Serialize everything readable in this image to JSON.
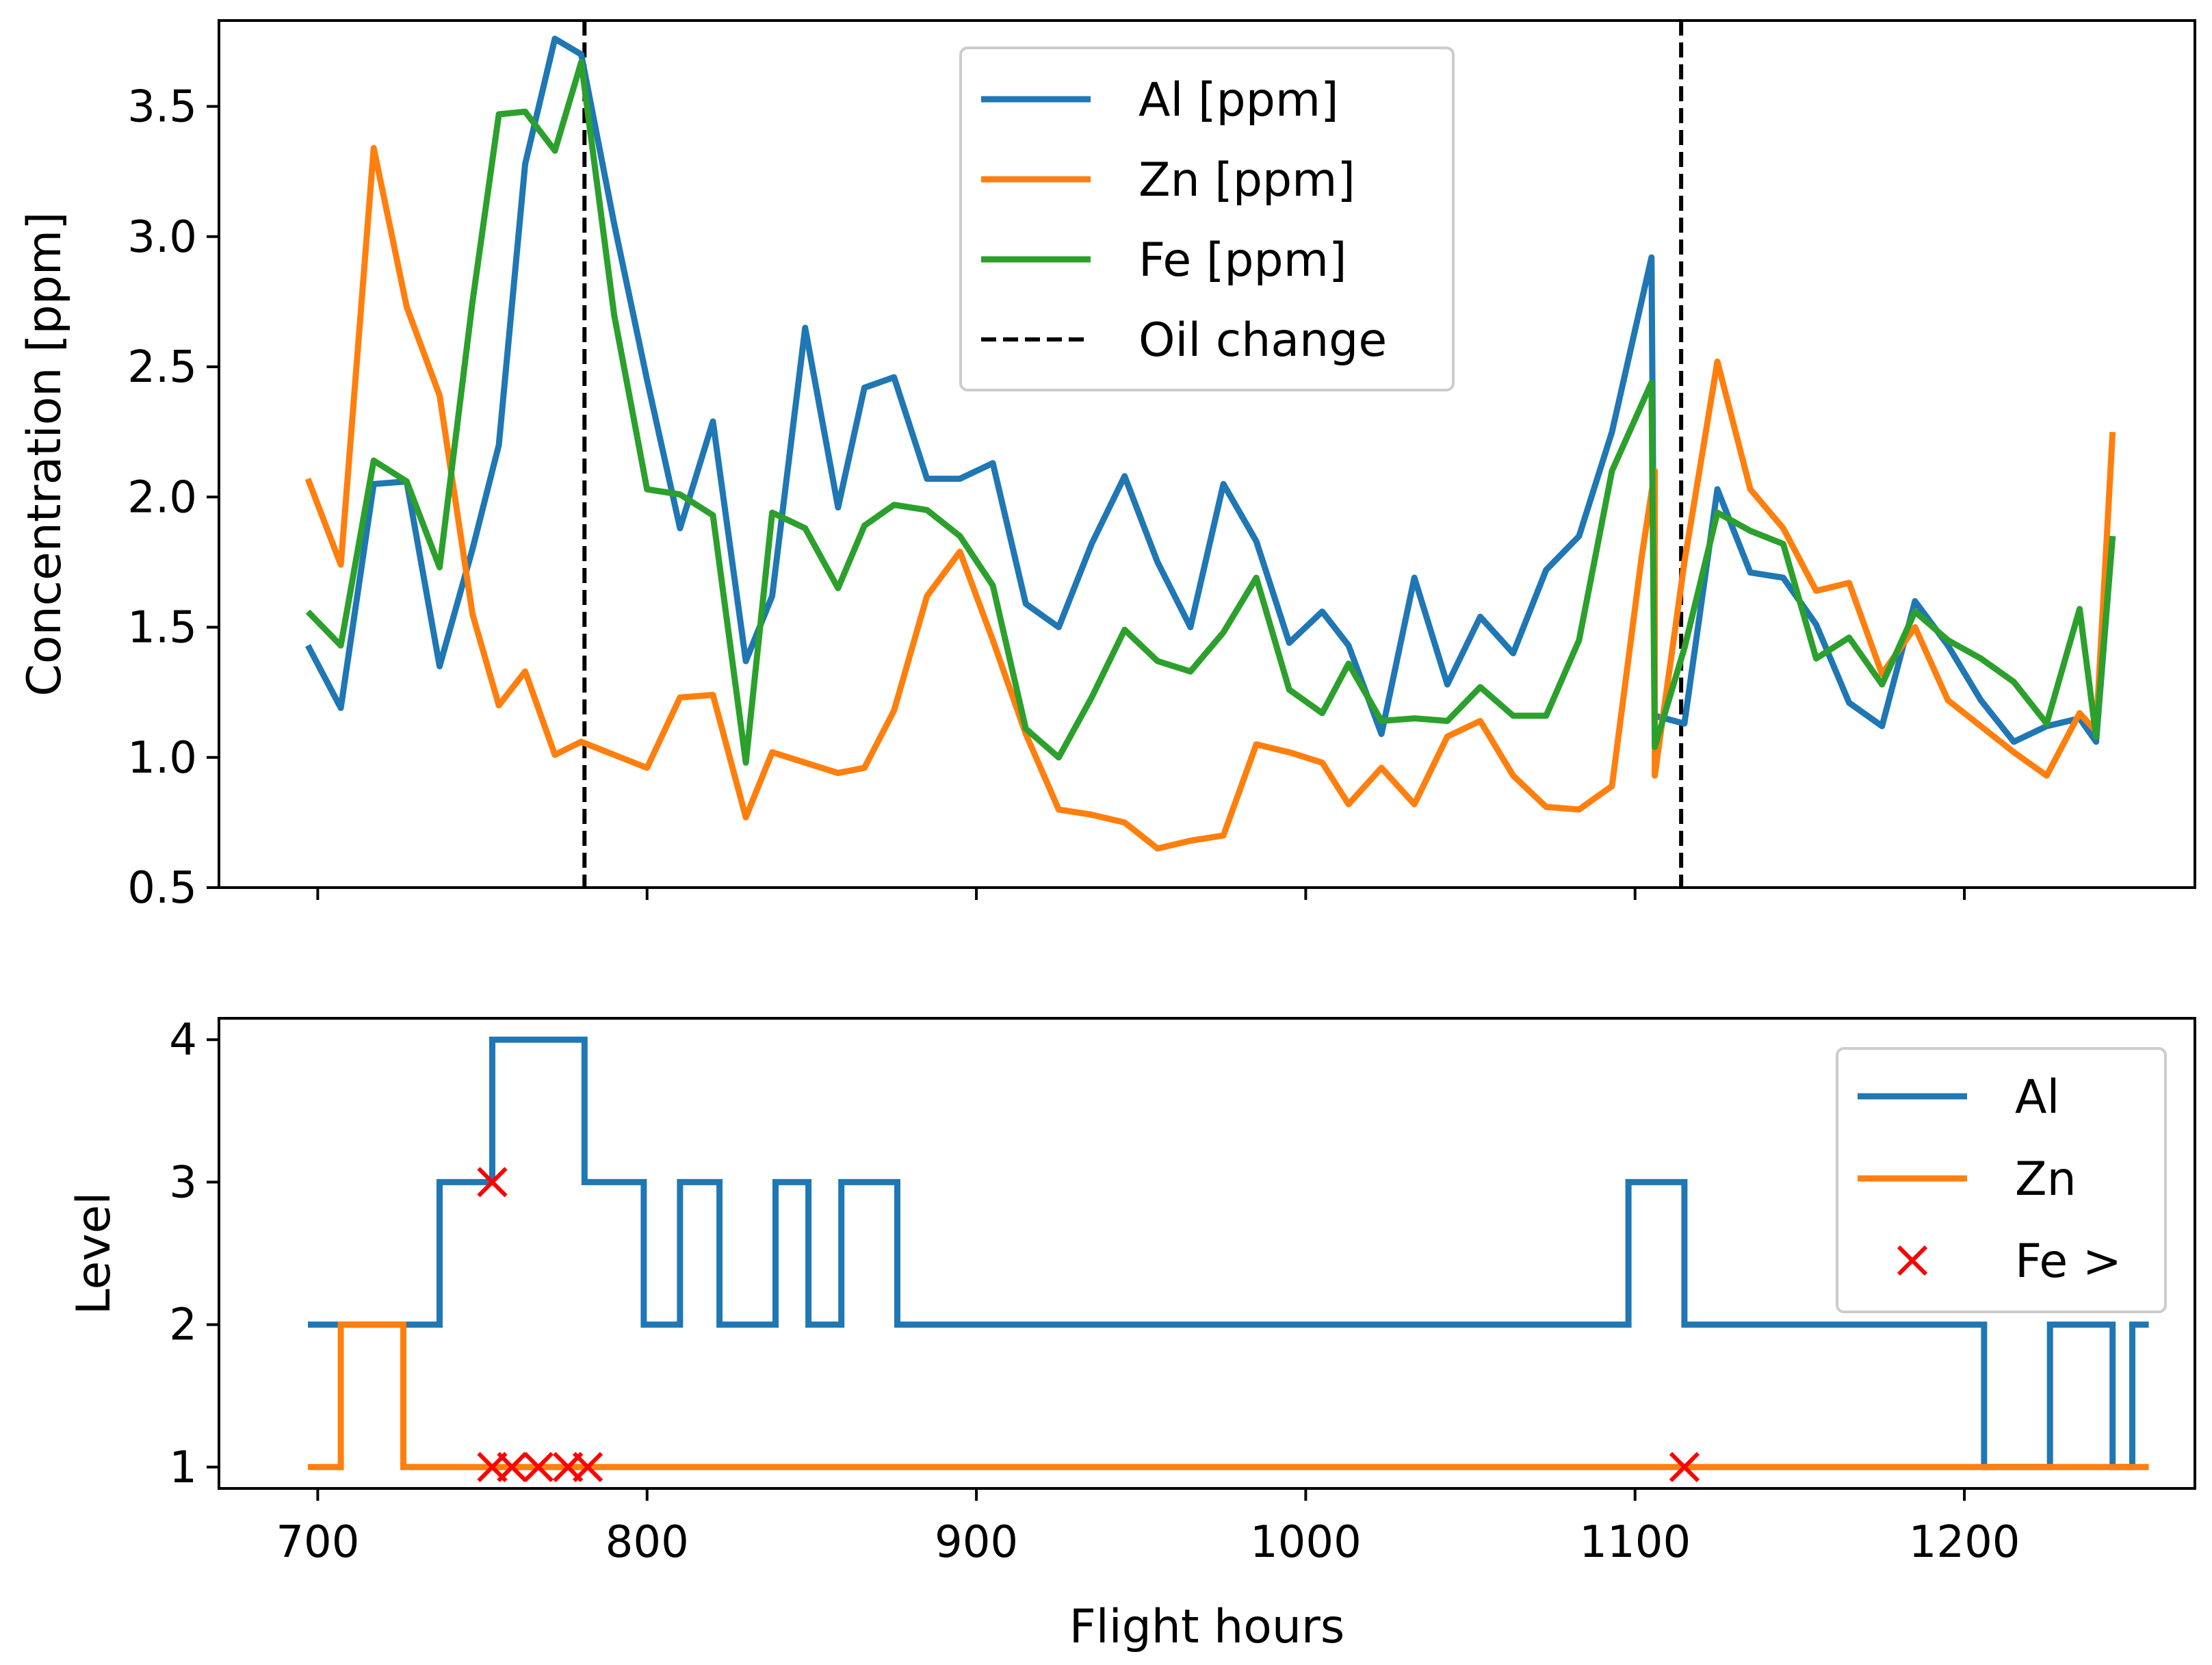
{
  "chart_data": [
    {
      "type": "line",
      "xlabel": "",
      "ylabel": "Concentration [ppm]",
      "xlim": [
        670,
        1270
      ],
      "ylim": [
        0.5,
        3.83
      ],
      "xticks": [
        700,
        800,
        900,
        1000,
        1100,
        1200
      ],
      "yticks": [
        0.5,
        1.0,
        1.5,
        2.0,
        2.5,
        3.0,
        3.5
      ],
      "ytick_labels": [
        "0.5",
        "1.0",
        "1.5",
        "2.0",
        "2.5",
        "3.0",
        "3.5"
      ],
      "legend_position": "upper-center",
      "series": [
        {
          "name": "Al [ppm]",
          "color": "#1f77b4",
          "points": [
            [
              697,
              1.43
            ],
            [
              707,
              1.19
            ],
            [
              717,
              2.05
            ],
            [
              727,
              2.06
            ],
            [
              737,
              1.35
            ],
            [
              747,
              1.8
            ],
            [
              755,
              2.2
            ],
            [
              763,
              3.28
            ],
            [
              772,
              3.76
            ],
            [
              780,
              3.7
            ],
            [
              790,
              3.05
            ],
            [
              800,
              2.45
            ],
            [
              810,
              1.88
            ],
            [
              820,
              2.29
            ],
            [
              830,
              1.37
            ],
            [
              838,
              1.62
            ],
            [
              848,
              2.65
            ],
            [
              858,
              1.96
            ],
            [
              866,
              2.42
            ],
            [
              875,
              2.46
            ],
            [
              885,
              2.07
            ],
            [
              895,
              2.07
            ],
            [
              905,
              2.13
            ],
            [
              915,
              1.59
            ],
            [
              925,
              1.5
            ],
            [
              935,
              1.82
            ],
            [
              945,
              2.08
            ],
            [
              955,
              1.75
            ],
            [
              965,
              1.5
            ],
            [
              975,
              2.05
            ],
            [
              985,
              1.83
            ],
            [
              995,
              1.44
            ],
            [
              1005,
              1.56
            ],
            [
              1013,
              1.43
            ],
            [
              1023,
              1.09
            ],
            [
              1033,
              1.69
            ],
            [
              1043,
              1.28
            ],
            [
              1053,
              1.54
            ],
            [
              1063,
              1.4
            ],
            [
              1073,
              1.72
            ],
            [
              1083,
              1.85
            ],
            [
              1093,
              2.25
            ],
            [
              1105,
              2.92
            ],
            [
              1106,
              1.16
            ],
            [
              1115,
              1.13
            ],
            [
              1125,
              2.03
            ],
            [
              1135,
              1.71
            ],
            [
              1145,
              1.69
            ],
            [
              1155,
              1.51
            ],
            [
              1165,
              1.21
            ],
            [
              1175,
              1.12
            ],
            [
              1185,
              1.6
            ],
            [
              1195,
              1.43
            ],
            [
              1205,
              1.22
            ],
            [
              1215,
              1.06
            ],
            [
              1225,
              1.12
            ],
            [
              1235,
              1.15
            ],
            [
              1240,
              1.06
            ],
            [
              1245,
              1.85
            ]
          ]
        },
        {
          "name": "Zn [ppm]",
          "color": "#ff7f0e",
          "points": [
            [
              697,
              2.07
            ],
            [
              707,
              1.74
            ],
            [
              717,
              3.34
            ],
            [
              727,
              2.73
            ],
            [
              737,
              2.39
            ],
            [
              747,
              1.55
            ],
            [
              755,
              1.2
            ],
            [
              763,
              1.33
            ],
            [
              772,
              1.01
            ],
            [
              780,
              1.06
            ],
            [
              790,
              1.01
            ],
            [
              800,
              0.96
            ],
            [
              810,
              1.23
            ],
            [
              820,
              1.24
            ],
            [
              830,
              0.77
            ],
            [
              838,
              1.02
            ],
            [
              848,
              0.98
            ],
            [
              858,
              0.94
            ],
            [
              866,
              0.96
            ],
            [
              875,
              1.18
            ],
            [
              885,
              1.62
            ],
            [
              895,
              1.79
            ],
            [
              905,
              1.45
            ],
            [
              915,
              1.09
            ],
            [
              925,
              0.8
            ],
            [
              935,
              0.78
            ],
            [
              945,
              0.75
            ],
            [
              955,
              0.65
            ],
            [
              965,
              0.68
            ],
            [
              975,
              0.7
            ],
            [
              985,
              1.05
            ],
            [
              995,
              1.02
            ],
            [
              1005,
              0.98
            ],
            [
              1013,
              0.82
            ],
            [
              1023,
              0.96
            ],
            [
              1033,
              0.82
            ],
            [
              1043,
              1.08
            ],
            [
              1053,
              1.14
            ],
            [
              1063,
              0.93
            ],
            [
              1073,
              0.81
            ],
            [
              1083,
              0.8
            ],
            [
              1093,
              0.89
            ],
            [
              1102,
              1.77
            ],
            [
              1106,
              2.1
            ],
            [
              1106,
              0.93
            ],
            [
              1115,
              1.75
            ],
            [
              1125,
              2.52
            ],
            [
              1135,
              2.03
            ],
            [
              1145,
              1.88
            ],
            [
              1155,
              1.64
            ],
            [
              1165,
              1.67
            ],
            [
              1175,
              1.32
            ],
            [
              1185,
              1.5
            ],
            [
              1195,
              1.22
            ],
            [
              1205,
              1.12
            ],
            [
              1215,
              1.02
            ],
            [
              1225,
              0.93
            ],
            [
              1235,
              1.17
            ],
            [
              1240,
              1.1
            ],
            [
              1245,
              2.25
            ]
          ]
        },
        {
          "name": "Fe [ppm]",
          "color": "#2ca02c",
          "points": [
            [
              697,
              1.56
            ],
            [
              707,
              1.43
            ],
            [
              717,
              2.14
            ],
            [
              727,
              2.06
            ],
            [
              737,
              1.73
            ],
            [
              747,
              2.75
            ],
            [
              755,
              3.47
            ],
            [
              763,
              3.48
            ],
            [
              772,
              3.33
            ],
            [
              780,
              3.67
            ],
            [
              790,
              2.7
            ],
            [
              800,
              2.03
            ],
            [
              810,
              2.01
            ],
            [
              820,
              1.93
            ],
            [
              830,
              0.98
            ],
            [
              838,
              1.94
            ],
            [
              848,
              1.88
            ],
            [
              858,
              1.65
            ],
            [
              866,
              1.89
            ],
            [
              875,
              1.97
            ],
            [
              885,
              1.95
            ],
            [
              895,
              1.85
            ],
            [
              905,
              1.66
            ],
            [
              915,
              1.11
            ],
            [
              925,
              1.0
            ],
            [
              935,
              1.23
            ],
            [
              945,
              1.49
            ],
            [
              955,
              1.37
            ],
            [
              965,
              1.33
            ],
            [
              975,
              1.48
            ],
            [
              985,
              1.69
            ],
            [
              995,
              1.26
            ],
            [
              1005,
              1.17
            ],
            [
              1013,
              1.36
            ],
            [
              1023,
              1.14
            ],
            [
              1033,
              1.15
            ],
            [
              1043,
              1.14
            ],
            [
              1053,
              1.27
            ],
            [
              1063,
              1.16
            ],
            [
              1073,
              1.16
            ],
            [
              1083,
              1.45
            ],
            [
              1093,
              2.1
            ],
            [
              1105,
              2.44
            ],
            [
              1106,
              1.04
            ],
            [
              1115,
              1.42
            ],
            [
              1125,
              1.94
            ],
            [
              1135,
              1.87
            ],
            [
              1145,
              1.82
            ],
            [
              1155,
              1.38
            ],
            [
              1165,
              1.46
            ],
            [
              1175,
              1.28
            ],
            [
              1185,
              1.56
            ],
            [
              1195,
              1.45
            ],
            [
              1205,
              1.38
            ],
            [
              1215,
              1.29
            ],
            [
              1225,
              1.13
            ],
            [
              1235,
              1.57
            ],
            [
              1240,
              1.08
            ],
            [
              1245,
              1.85
            ]
          ]
        },
        {
          "name": "Oil change",
          "color": "#000000",
          "style": "dashed",
          "vlines": [
            781,
            1114
          ]
        }
      ]
    },
    {
      "type": "line",
      "xlabel": "Flight hours",
      "ylabel": "Level",
      "xlim": [
        670,
        1270
      ],
      "ylim": [
        0.85,
        4.15
      ],
      "xticks": [
        700,
        800,
        900,
        1000,
        1100,
        1200
      ],
      "xtick_labels": [
        "700",
        "800",
        "900",
        "1000",
        "1100",
        "1200"
      ],
      "yticks": [
        1,
        2,
        3,
        4
      ],
      "ytick_labels": [
        "1",
        "2",
        "3",
        "4"
      ],
      "legend_position": "upper-right",
      "series": [
        {
          "name": "Al",
          "color": "#1f77b4",
          "style": "step",
          "steps": [
            [
              697,
              2
            ],
            [
              737,
              3
            ],
            [
              753,
              4
            ],
            [
              781,
              3
            ],
            [
              799,
              2
            ],
            [
              810,
              3
            ],
            [
              822,
              2
            ],
            [
              839,
              3
            ],
            [
              849,
              2
            ],
            [
              859,
              3
            ],
            [
              876,
              2
            ],
            [
              1098,
              3
            ],
            [
              1115,
              2
            ],
            [
              1206,
              1
            ],
            [
              1226,
              2
            ],
            [
              1245,
              1
            ],
            [
              1251,
              2
            ],
            [
              1256,
              2
            ]
          ]
        },
        {
          "name": "Zn",
          "color": "#ff7f0e",
          "style": "step",
          "steps": [
            [
              697,
              1
            ],
            [
              707,
              2
            ],
            [
              726,
              1
            ],
            [
              1256,
              1
            ]
          ]
        },
        {
          "name": "Fe >",
          "color": "#ff0000",
          "style": "markers-x",
          "points": [
            [
              753,
              3
            ],
            [
              753,
              1
            ],
            [
              759,
              1
            ],
            [
              767,
              1
            ],
            [
              776,
              1
            ],
            [
              782,
              1
            ],
            [
              1115,
              1
            ]
          ]
        }
      ]
    }
  ]
}
